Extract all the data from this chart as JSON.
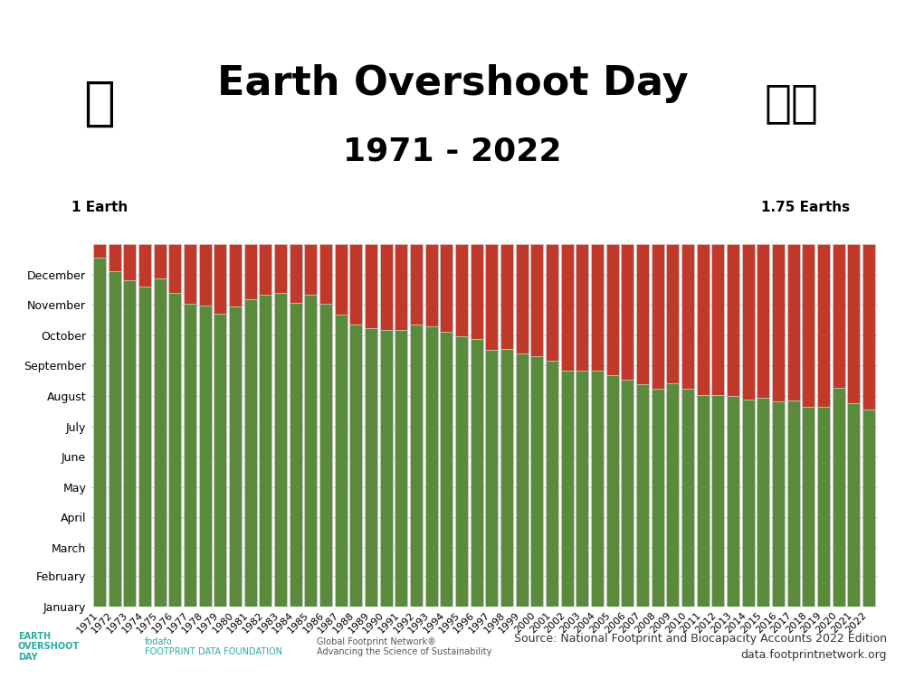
{
  "title": "Earth Overshoot Day",
  "subtitle": "1971 - 2022",
  "label_left": "1 Earth",
  "label_right": "1.75 Earths",
  "source_text": "Source: National Footprint and Biocapacity Accounts 2022 Edition\ndata.footprintnetwork.org",
  "green_color": "#5a8a3c",
  "red_color": "#c0392b",
  "bar_edge_color": "#cccccc",
  "background_color": "#ffffff",
  "total_days": 365,
  "years": [
    1971,
    1972,
    1973,
    1974,
    1975,
    1976,
    1977,
    1978,
    1979,
    1980,
    1981,
    1982,
    1983,
    1984,
    1985,
    1986,
    1987,
    1988,
    1989,
    1990,
    1991,
    1992,
    1993,
    1994,
    1995,
    1996,
    1997,
    1998,
    1999,
    2000,
    2001,
    2002,
    2003,
    2004,
    2005,
    2006,
    2007,
    2008,
    2009,
    2010,
    2011,
    2012,
    2013,
    2014,
    2015,
    2016,
    2017,
    2018,
    2019,
    2020,
    2021,
    2022
  ],
  "overshoot_day": [
    351,
    338,
    328,
    322,
    330,
    316,
    305,
    303,
    295,
    302,
    309,
    314,
    316,
    306,
    314,
    305,
    294,
    284,
    280,
    278,
    278,
    284,
    282,
    277,
    272,
    269,
    258,
    259,
    255,
    252,
    247,
    237,
    237,
    237,
    233,
    228,
    224,
    219,
    225,
    219,
    213,
    213,
    212,
    208,
    210,
    206,
    207,
    201,
    201,
    220,
    205,
    198
  ],
  "month_labels": [
    "January",
    "February",
    "March",
    "April",
    "May",
    "June",
    "July",
    "August",
    "September",
    "October",
    "November",
    "December"
  ],
  "month_days": [
    0,
    31,
    59,
    90,
    120,
    151,
    181,
    212,
    243,
    273,
    304,
    334
  ],
  "ylabel_fontsize": 10,
  "xlabel_fontsize": 9,
  "title_fontsize": 32,
  "subtitle_fontsize": 26
}
